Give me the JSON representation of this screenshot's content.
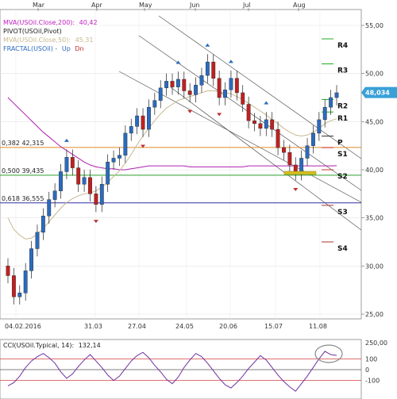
{
  "chart_data": {
    "type": "candlestick",
    "symbol": "USOil",
    "indicators": [
      {
        "label": "MVA(USOil.Close,200):",
        "value": "40,42",
        "color": "#c020c0"
      },
      {
        "label": "PIVOT(USOil,Pivot)",
        "value": "",
        "color": "#202020"
      },
      {
        "label": "MVA(USOil.Close,50):",
        "value": "45,31",
        "color": "#c8b890"
      },
      {
        "label": "FRACTAL(USOil) -",
        "value": "",
        "color": "#2a6bbf",
        "extra": [
          {
            "text": "Up",
            "color": "#2a6bbf"
          },
          {
            "text": "Dn",
            "color": "#c03030"
          }
        ]
      }
    ],
    "months": [
      "Mar",
      "Apr",
      "May",
      "Jun",
      "Jul",
      "Aug"
    ],
    "x_ticks": [
      "04.02.2016",
      "31.03",
      "27.04",
      "24.05",
      "20.06",
      "15.07",
      "11.08"
    ],
    "y_ticks": [
      "55,00",
      "50,00",
      "45,00",
      "40,00",
      "35,00",
      "30,00",
      "25,00"
    ],
    "ylim": [
      24,
      56
    ],
    "last_price": "48,034",
    "last_price_value": 48.03,
    "fib_levels": [
      {
        "label": "0,382 42,315",
        "value": 42.315,
        "color": "#e08a2a"
      },
      {
        "label": "0,500 39,435",
        "value": 39.435,
        "color": "#2aa02a"
      },
      {
        "label": "0,618 36,555",
        "value": 36.555,
        "color": "#3030a0"
      }
    ],
    "pivots": [
      {
        "label": "R4",
        "value": 53.6,
        "color": "#22aa22"
      },
      {
        "label": "R3",
        "value": 51.0,
        "color": "#22aa22"
      },
      {
        "label": "R2",
        "value": 47.3,
        "color": "#22aa22"
      },
      {
        "label": "R1",
        "value": 46.0,
        "color": "#22aa22"
      },
      {
        "label": "P",
        "value": 43.5,
        "color": "#333333"
      },
      {
        "label": "S1",
        "value": 42.3,
        "color": "#cc3333"
      },
      {
        "label": "S2",
        "value": 40.0,
        "color": "#cc3333"
      },
      {
        "label": "S3",
        "value": 36.3,
        "color": "#aa3333"
      },
      {
        "label": "S4",
        "value": 32.5,
        "color": "#aa3333"
      }
    ],
    "close_series": [
      29.0,
      26.8,
      27.2,
      29.5,
      31.8,
      33.5,
      35.2,
      36.9,
      37.8,
      39.8,
      41.3,
      40.2,
      38.5,
      39.2,
      37.5,
      36.4,
      38.5,
      40.8,
      41.2,
      41.5,
      43.8,
      44.5,
      45.6,
      44.2,
      46.5,
      47.2,
      48.5,
      49.2,
      48.6,
      49.4,
      48.2,
      47.8,
      48.8,
      49.8,
      51.2,
      49.5,
      47.5,
      48.3,
      49.5,
      48.0,
      46.8,
      45.1,
      44.8,
      44.3,
      45.2,
      44.2,
      42.3,
      41.8,
      40.5,
      39.7,
      41.2,
      42.5,
      43.8,
      45.2,
      46.5,
      47.5,
      48.0
    ],
    "ma50_series": [
      35.0,
      33.8,
      33.2,
      32.8,
      32.9,
      33.3,
      33.9,
      34.6,
      35.3,
      36.0,
      36.6,
      37.0,
      37.3,
      37.5,
      37.6,
      37.8,
      38.2,
      38.7,
      39.3,
      39.9,
      40.7,
      41.6,
      42.6,
      43.5,
      44.3,
      45.1,
      45.8,
      46.4,
      46.8,
      47.2,
      47.4,
      47.6,
      47.8,
      48.0,
      48.2,
      48.2,
      48.1,
      48.0,
      47.9,
      47.6,
      47.3,
      46.9,
      46.5,
      46.1,
      45.7,
      45.2,
      44.8,
      44.3,
      43.9,
      43.6,
      43.5,
      43.6,
      43.9,
      44.3,
      44.8,
      45.1,
      45.3
    ],
    "ma200_series": [
      47.5,
      46.9,
      46.3,
      45.7,
      45.1,
      44.5,
      43.9,
      43.4,
      42.9,
      42.4,
      42.0,
      41.6,
      41.2,
      40.8,
      40.5,
      40.3,
      40.2,
      40.1,
      40.1,
      40.0,
      40.0,
      40.1,
      40.2,
      40.3,
      40.4,
      40.4,
      40.4,
      40.4,
      40.4,
      40.4,
      40.4,
      40.3,
      40.3,
      40.3,
      40.3,
      40.3,
      40.3,
      40.3,
      40.3,
      40.3,
      40.3,
      40.4,
      40.4,
      40.4,
      40.4,
      40.4,
      40.4,
      40.4,
      40.4,
      40.4,
      40.4,
      40.4,
      40.4,
      40.4,
      40.4,
      40.4,
      40.42
    ],
    "cci": {
      "label": "CCI(USOil.Typical, 14):",
      "value": "132,14",
      "y_ticks": [
        "250,00",
        "100",
        "0",
        "-100"
      ],
      "ylim": [
        -250,
        250
      ],
      "levels": [
        100,
        0,
        -100
      ],
      "series": [
        -150,
        -120,
        -60,
        20,
        80,
        120,
        150,
        110,
        60,
        -20,
        -80,
        -40,
        30,
        90,
        140,
        80,
        20,
        -50,
        -100,
        -60,
        10,
        80,
        130,
        160,
        110,
        40,
        -20,
        -90,
        -130,
        -70,
        20,
        90,
        150,
        120,
        60,
        -10,
        -80,
        -140,
        -170,
        -120,
        -60,
        10,
        70,
        130,
        90,
        20,
        -50,
        -110,
        -160,
        -200,
        -130,
        -60,
        20,
        100,
        170,
        140,
        132
      ]
    }
  }
}
